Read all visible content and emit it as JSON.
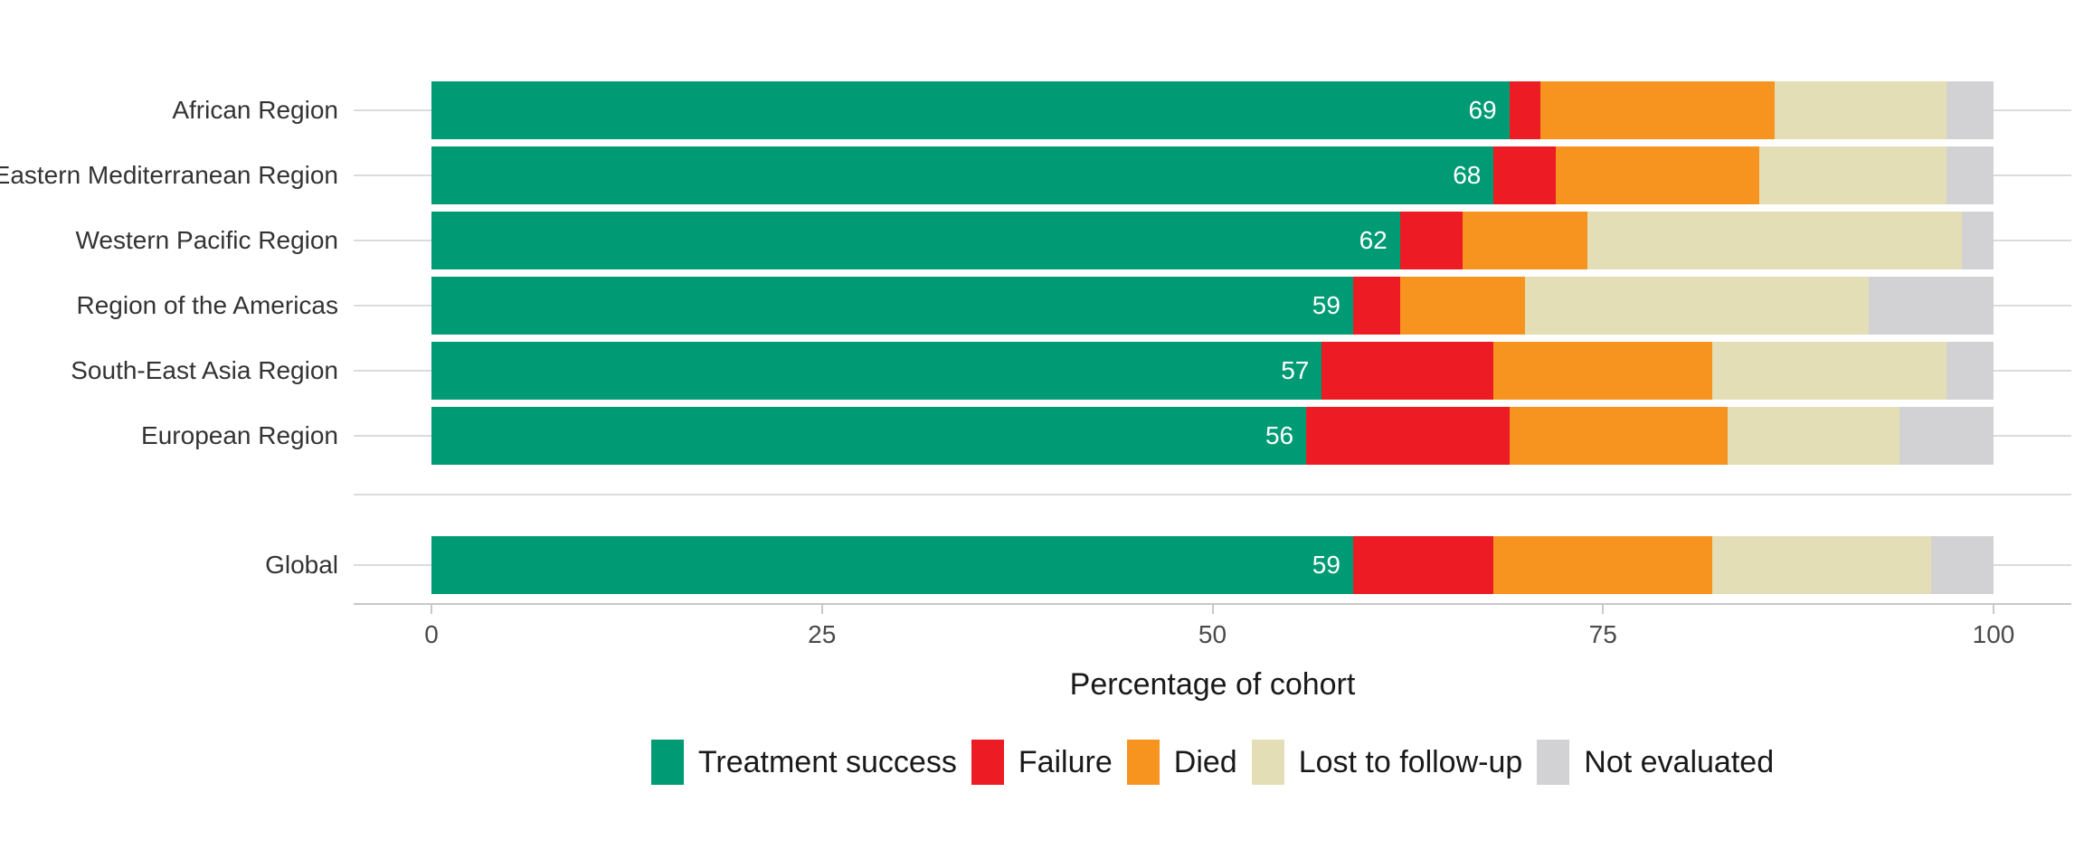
{
  "chart_data": {
    "type": "bar",
    "stacked": true,
    "orientation": "horizontal",
    "title": "",
    "xlabel": "Percentage of cohort",
    "xlim": [
      0,
      100
    ],
    "x_ticks": [
      0,
      25,
      50,
      75,
      100
    ],
    "grid": "horizontal-row-lines-only",
    "legend_position": "bottom",
    "legend": [
      {
        "label": "Treatment success",
        "color": "#009B74"
      },
      {
        "label": "Failure",
        "color": "#EC1B24"
      },
      {
        "label": "Died",
        "color": "#F79420"
      },
      {
        "label": "Lost to follow-up",
        "color": "#E3DEB5"
      },
      {
        "label": "Not evaluated",
        "color": "#D2D2D5"
      }
    ],
    "series_order": [
      "Treatment success",
      "Failure",
      "Died",
      "Lost to follow-up",
      "Not evaluated"
    ],
    "rows": [
      {
        "label": "African Region",
        "segments": [
          69,
          2,
          15,
          11,
          3
        ],
        "value_label": "69"
      },
      {
        "label": "Eastern Mediterranean Region",
        "segments": [
          68,
          4,
          13,
          12,
          3
        ],
        "value_label": "68"
      },
      {
        "label": "Western Pacific Region",
        "segments": [
          62,
          4,
          8,
          24,
          2
        ],
        "value_label": "62"
      },
      {
        "label": "Region of the Americas",
        "segments": [
          59,
          3,
          8,
          22,
          8
        ],
        "value_label": "59"
      },
      {
        "label": "South-East Asia Region",
        "segments": [
          57,
          11,
          14,
          15,
          3
        ],
        "value_label": "57"
      },
      {
        "label": "European Region",
        "segments": [
          56,
          13,
          14,
          11,
          6
        ],
        "value_label": "56"
      }
    ],
    "global_row": {
      "label": "Global",
      "segments": [
        59,
        9,
        14,
        14,
        4
      ],
      "value_label": "59"
    }
  }
}
